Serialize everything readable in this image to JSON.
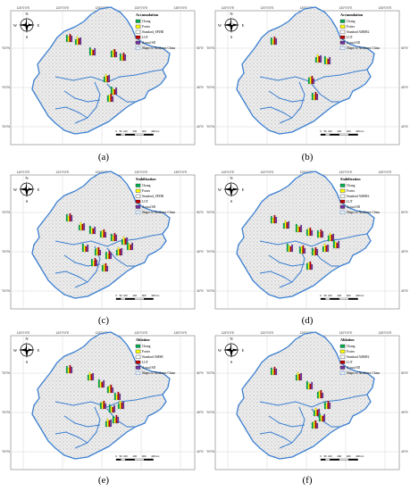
{
  "colors": {
    "ground": "#d9d9d9",
    "border": "#3b7fd1",
    "pillar1": "#00b050",
    "pillar2": "#ffff00",
    "pillar3": "#c00000",
    "pillar4": "#7030a0"
  },
  "panels": [
    {
      "id": "a",
      "caption": "(a)",
      "legend": {
        "title": "Accumulation",
        "items": [
          "Chang",
          "Fortes",
          "Standard_SPI/RI",
          "LUT",
          "Actual SD",
          "Shape of Northeast China"
        ]
      },
      "top_lat_labels": [
        "115°0'0\"E",
        "120°0'0\"E",
        "125°0'0\"E",
        "130°0'0\"E",
        "135°0'0\"E"
      ],
      "side_lat_labels": [
        "50°0'0\"N",
        "45°0'0\"N",
        "40°0'0\"N"
      ]
    },
    {
      "id": "b",
      "caption": "(b)",
      "legend": {
        "title": "Accumulation",
        "items": [
          "Chang",
          "Fortes",
          "Standard AMSR2",
          "LUT",
          "Actual SD",
          "Shape of Northeast China"
        ]
      },
      "top_lat_labels": [
        "115°0'0\"E",
        "120°0'0\"E",
        "125°0'0\"E",
        "130°0'0\"E",
        "135°0'0\"E"
      ],
      "side_lat_labels": [
        "50°0'0\"N",
        "45°0'0\"N",
        "40°0'0\"N"
      ]
    },
    {
      "id": "c",
      "caption": "(c)",
      "legend": {
        "title": "Stabilization",
        "items": [
          "Chang",
          "Fortes",
          "Standard_SPI/RI",
          "LUT",
          "Actual SD",
          "Shape of Northeast China"
        ]
      },
      "top_lat_labels": [
        "115°0'0\"E",
        "120°0'0\"E",
        "125°0'0\"E",
        "130°0'0\"E",
        "135°0'0\"E"
      ],
      "side_lat_labels": [
        "50°0'0\"N",
        "45°0'0\"N",
        "40°0'0\"N"
      ]
    },
    {
      "id": "d",
      "caption": "(d)",
      "legend": {
        "title": "Stabilization",
        "items": [
          "Chang",
          "Fortes",
          "Standard AMSR2",
          "LUT",
          "Actual SD",
          "Shape of Northeast China"
        ]
      },
      "top_lat_labels": [
        "115°0'0\"E",
        "120°0'0\"E",
        "125°0'0\"E",
        "130°0'0\"E",
        "135°0'0\"E"
      ],
      "side_lat_labels": [
        "50°0'0\"N",
        "45°0'0\"N",
        "40°0'0\"N"
      ]
    },
    {
      "id": "e",
      "caption": "(e)",
      "legend": {
        "title": "Ablation",
        "items": [
          "Chang",
          "Fortes",
          "Standard AMSR",
          "LUT",
          "Actual SD",
          "Shape of Northeast China"
        ]
      },
      "top_lat_labels": [
        "115°0'0\"E",
        "120°0'0\"E",
        "125°0'0\"E",
        "130°0'0\"E",
        "135°0'0\"E"
      ],
      "side_lat_labels": [
        "50°0'0\"N",
        "45°0'0\"N",
        "40°0'0\"N"
      ]
    },
    {
      "id": "f",
      "caption": "(f)",
      "legend": {
        "title": "Ablation",
        "items": [
          "Chang",
          "Fortes",
          "Standard AMSR2",
          "LUT",
          "Actual SD",
          "Shape of Northeast China"
        ]
      },
      "top_lat_labels": [
        "115°0'0\"E",
        "120°0'0\"E",
        "125°0'0\"E",
        "130°0'0\"E",
        "135°0'0\"E"
      ],
      "side_lat_labels": [
        "50°0'0\"N",
        "45°0'0\"N",
        "40°0'0\"N"
      ]
    }
  ],
  "scale_labels": [
    "0",
    "50",
    "100",
    "200",
    "300",
    "400"
  ],
  "scale_unit": "km",
  "compass": {
    "n": "N",
    "s": "S",
    "e": "E",
    "w": "W"
  }
}
